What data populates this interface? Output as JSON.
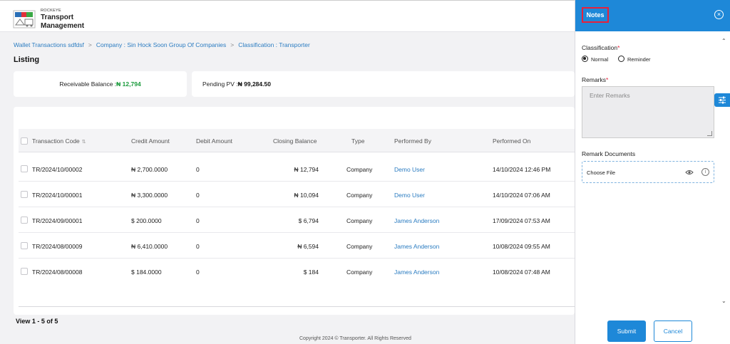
{
  "header": {
    "brand_small": "ROCKEYE",
    "brand_line1": "Transport",
    "brand_line2": "Management"
  },
  "breadcrumb": {
    "items": [
      "Wallet Transactions sdfdsf",
      "Company : Sin Hock Soon Group Of Companies",
      "Classification : Transporter"
    ],
    "separator": ">"
  },
  "page_title": "Listing",
  "balances": {
    "receivable_label": "Receivable Balance : ",
    "receivable_value": "₦ 12,794",
    "pending_label": "Pending PV : ",
    "pending_value": "₦ 99,284.50"
  },
  "table": {
    "columns": [
      "Transaction Code",
      "Credit Amount",
      "Debit Amount",
      "Closing Balance",
      "Type",
      "Performed By",
      "Performed On"
    ],
    "rows": [
      {
        "code": "TR/2024/10/00002",
        "credit": "₦ 2,700.0000",
        "debit": "0",
        "closing": "₦ 12,794",
        "type": "Company",
        "by": "Demo User",
        "on": "14/10/2024 12:46 PM"
      },
      {
        "code": "TR/2024/10/00001",
        "credit": "₦ 3,300.0000",
        "debit": "0",
        "closing": "₦ 10,094",
        "type": "Company",
        "by": "Demo User",
        "on": "14/10/2024 07:06 AM"
      },
      {
        "code": "TR/2024/09/00001",
        "credit": "$ 200.0000",
        "debit": "0",
        "closing": "$ 6,794",
        "type": "Company",
        "by": "James Anderson",
        "on": "17/09/2024 07:53 AM"
      },
      {
        "code": "TR/2024/08/00009",
        "credit": "₦ 6,410.0000",
        "debit": "0",
        "closing": "₦ 6,594",
        "type": "Company",
        "by": "James Anderson",
        "on": "10/08/2024 09:55 AM"
      },
      {
        "code": "TR/2024/08/00008",
        "credit": "$ 184.0000",
        "debit": "0",
        "closing": "$ 184",
        "type": "Company",
        "by": "James Anderson",
        "on": "10/08/2024 07:48 AM"
      }
    ],
    "view_count": "View 1 - 5 of 5"
  },
  "footer": "Copyright 2024 © Transporter. All Rights Reserved",
  "drawer": {
    "title": "Notes",
    "classification_label": "Classification",
    "required_mark": "*",
    "options": [
      "Normal",
      "Reminder"
    ],
    "selected": "Normal",
    "remarks_label": "Remarks",
    "remarks_placeholder": "Enter Remarks",
    "documents_label": "Remark Documents",
    "choose_file": "Choose File",
    "submit": "Submit",
    "cancel": "Cancel"
  },
  "colors": {
    "primary": "#1e88d8",
    "link": "#2b7cc1",
    "green": "#1a9b3c",
    "required": "#e8203a"
  }
}
